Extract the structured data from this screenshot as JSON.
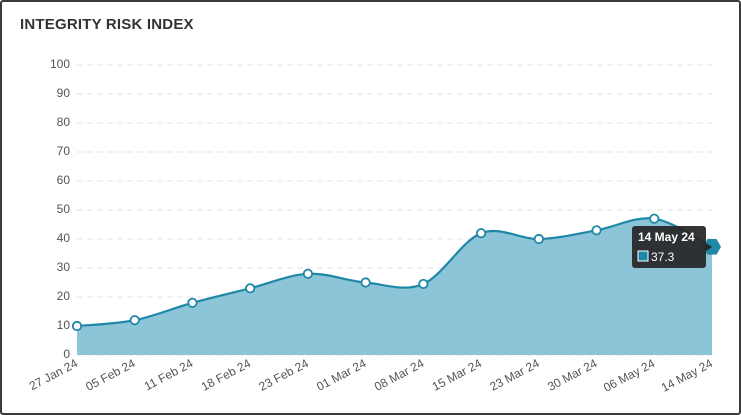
{
  "chart_data": {
    "type": "area",
    "title": "INTEGRITY RISK INDEX",
    "categories": [
      "27 Jan 24",
      "05 Feb 24",
      "11 Feb 24",
      "18 Feb 24",
      "23 Feb 24",
      "01 Mar 24",
      "08 Mar 24",
      "15 Mar 24",
      "23 Mar 24",
      "30 Mar 24",
      "06 May 24",
      "14 May 24"
    ],
    "values": [
      10,
      12,
      18,
      23,
      28,
      25,
      24.5,
      42,
      40,
      43,
      47,
      37.3
    ],
    "color": "#1f87a8",
    "fill_color": "#8cc5d8",
    "ylim": [
      0,
      100
    ],
    "yticks": [
      0,
      10,
      20,
      30,
      40,
      50,
      60,
      70,
      80,
      90,
      100
    ],
    "grid": true
  }
}
